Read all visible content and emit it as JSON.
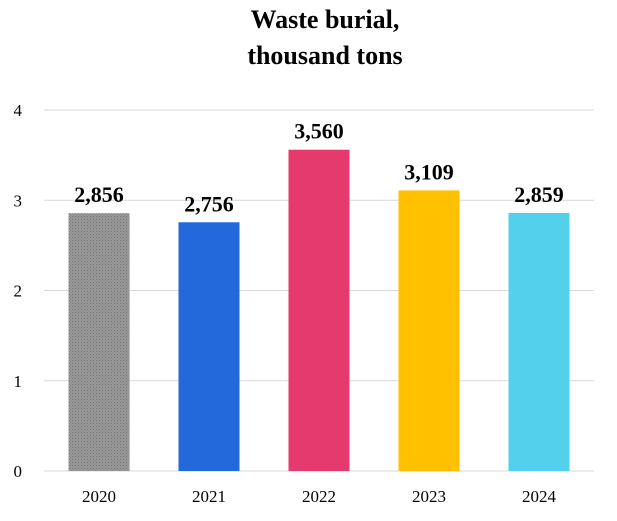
{
  "chart_data": {
    "type": "bar",
    "title_lines": [
      "Waste burial,",
      "thousand tons"
    ],
    "categories": [
      "2020",
      "2021",
      "2022",
      "2023",
      "2024"
    ],
    "values": [
      2.856,
      2.756,
      3.56,
      3.109,
      2.859
    ],
    "data_labels": [
      "2,856",
      "2,756",
      "3,560",
      "3,109",
      "2,859"
    ],
    "colors": [
      "#8f8f8f",
      "#2369dc",
      "#e43a6d",
      "#ffc000",
      "#52d0ec"
    ],
    "bar_patterns": [
      "dotted",
      "solid",
      "solid",
      "solid",
      "solid"
    ],
    "yticks": [
      "0",
      "1",
      "2",
      "3",
      "4"
    ],
    "ylim": [
      0,
      4
    ],
    "grid": true,
    "legend": "none",
    "xlabel": "",
    "ylabel": ""
  }
}
